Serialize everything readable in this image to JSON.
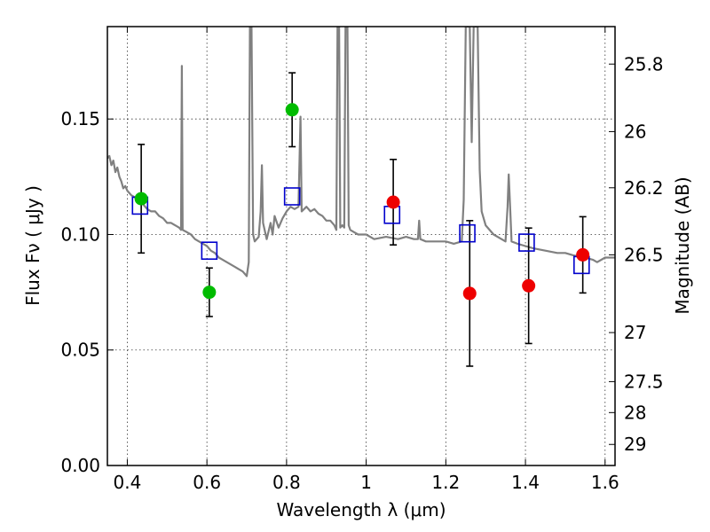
{
  "chart_data": {
    "type": "scatter",
    "xlabel": "Wavelength  λ (μm)",
    "ylabel": "Flux  Fν  ( μJy )",
    "y2label": "Magnitude (AB)",
    "xlim": [
      0.35,
      1.625
    ],
    "ylim": [
      0.0,
      0.19
    ],
    "x_ticks": [
      "0.4",
      "0.6",
      "0.8",
      "1",
      "1.2",
      "1.4",
      "1.6"
    ],
    "y_ticks": [
      "0.00",
      "0.05",
      "0.10",
      "0.15"
    ],
    "y2_ticks": [
      "25.8",
      "26",
      "26.2",
      "26.5",
      "27",
      "27.5",
      "28",
      "29"
    ],
    "grid": true,
    "colors": {
      "model": "#808080",
      "green": "#00bb00",
      "red": "#ee0000",
      "square": "#0000cc",
      "errorbar": "#000000"
    },
    "observed_green": [
      {
        "x": 0.435,
        "y": 0.1155,
        "err": 0.0235
      },
      {
        "x": 0.606,
        "y": 0.075,
        "err": 0.0105
      },
      {
        "x": 0.814,
        "y": 0.154,
        "err": 0.016
      }
    ],
    "observed_red": [
      {
        "x": 1.068,
        "y": 0.114,
        "err": 0.0185
      },
      {
        "x": 1.26,
        "y": 0.0745,
        "err": 0.0315
      },
      {
        "x": 1.408,
        "y": 0.0778,
        "err": 0.025
      },
      {
        "x": 1.544,
        "y": 0.0912,
        "err": 0.0165
      }
    ],
    "model_bands": [
      {
        "x": 0.432,
        "y": 0.1125
      },
      {
        "x": 0.606,
        "y": 0.093
      },
      {
        "x": 0.814,
        "y": 0.1165
      },
      {
        "x": 1.065,
        "y": 0.1085
      },
      {
        "x": 1.254,
        "y": 0.1005
      },
      {
        "x": 1.403,
        "y": 0.0965
      },
      {
        "x": 1.541,
        "y": 0.0868
      }
    ],
    "model_spectrum": [
      [
        0.35,
        0.133
      ],
      [
        0.355,
        0.134
      ],
      [
        0.36,
        0.13
      ],
      [
        0.365,
        0.132
      ],
      [
        0.37,
        0.127
      ],
      [
        0.375,
        0.129
      ],
      [
        0.38,
        0.125
      ],
      [
        0.385,
        0.123
      ],
      [
        0.39,
        0.12
      ],
      [
        0.395,
        0.121
      ],
      [
        0.4,
        0.119
      ],
      [
        0.41,
        0.117
      ],
      [
        0.42,
        0.116
      ],
      [
        0.43,
        0.114
      ],
      [
        0.44,
        0.113
      ],
      [
        0.45,
        0.111
      ],
      [
        0.46,
        0.11
      ],
      [
        0.47,
        0.11
      ],
      [
        0.48,
        0.108
      ],
      [
        0.49,
        0.107
      ],
      [
        0.5,
        0.105
      ],
      [
        0.51,
        0.105
      ],
      [
        0.52,
        0.104
      ],
      [
        0.53,
        0.103
      ],
      [
        0.535,
        0.102
      ],
      [
        0.537,
        0.173
      ],
      [
        0.539,
        0.102
      ],
      [
        0.55,
        0.101
      ],
      [
        0.56,
        0.1
      ],
      [
        0.57,
        0.098
      ],
      [
        0.58,
        0.097
      ],
      [
        0.59,
        0.096
      ],
      [
        0.6,
        0.095
      ],
      [
        0.61,
        0.093
      ],
      [
        0.62,
        0.092
      ],
      [
        0.63,
        0.09
      ],
      [
        0.64,
        0.089
      ],
      [
        0.65,
        0.088
      ],
      [
        0.66,
        0.087
      ],
      [
        0.67,
        0.086
      ],
      [
        0.68,
        0.085
      ],
      [
        0.69,
        0.084
      ],
      [
        0.7,
        0.082
      ],
      [
        0.705,
        0.088
      ],
      [
        0.708,
        0.19
      ],
      [
        0.712,
        0.19
      ],
      [
        0.716,
        0.1
      ],
      [
        0.72,
        0.097
      ],
      [
        0.73,
        0.099
      ],
      [
        0.735,
        0.11
      ],
      [
        0.738,
        0.13
      ],
      [
        0.741,
        0.105
      ],
      [
        0.75,
        0.098
      ],
      [
        0.76,
        0.105
      ],
      [
        0.765,
        0.1
      ],
      [
        0.77,
        0.108
      ],
      [
        0.78,
        0.103
      ],
      [
        0.79,
        0.107
      ],
      [
        0.8,
        0.11
      ],
      [
        0.81,
        0.112
      ],
      [
        0.82,
        0.111
      ],
      [
        0.83,
        0.112
      ],
      [
        0.835,
        0.151
      ],
      [
        0.838,
        0.11
      ],
      [
        0.85,
        0.112
      ],
      [
        0.86,
        0.11
      ],
      [
        0.87,
        0.111
      ],
      [
        0.88,
        0.109
      ],
      [
        0.89,
        0.108
      ],
      [
        0.9,
        0.106
      ],
      [
        0.91,
        0.106
      ],
      [
        0.92,
        0.104
      ],
      [
        0.925,
        0.102
      ],
      [
        0.928,
        0.19
      ],
      [
        0.932,
        0.19
      ],
      [
        0.935,
        0.103
      ],
      [
        0.94,
        0.104
      ],
      [
        0.945,
        0.103
      ],
      [
        0.948,
        0.19
      ],
      [
        0.953,
        0.19
      ],
      [
        0.956,
        0.104
      ],
      [
        0.96,
        0.102
      ],
      [
        0.97,
        0.101
      ],
      [
        0.98,
        0.1
      ],
      [
        1.0,
        0.1
      ],
      [
        1.02,
        0.098
      ],
      [
        1.05,
        0.099
      ],
      [
        1.08,
        0.098
      ],
      [
        1.1,
        0.099
      ],
      [
        1.12,
        0.098
      ],
      [
        1.13,
        0.098
      ],
      [
        1.133,
        0.106
      ],
      [
        1.136,
        0.098
      ],
      [
        1.15,
        0.097
      ],
      [
        1.18,
        0.097
      ],
      [
        1.2,
        0.097
      ],
      [
        1.22,
        0.096
      ],
      [
        1.24,
        0.097
      ],
      [
        1.245,
        0.115
      ],
      [
        1.25,
        0.19
      ],
      [
        1.26,
        0.19
      ],
      [
        1.265,
        0.14
      ],
      [
        1.27,
        0.19
      ],
      [
        1.28,
        0.19
      ],
      [
        1.285,
        0.128
      ],
      [
        1.29,
        0.11
      ],
      [
        1.3,
        0.104
      ],
      [
        1.32,
        0.1
      ],
      [
        1.34,
        0.098
      ],
      [
        1.35,
        0.097
      ],
      [
        1.355,
        0.112
      ],
      [
        1.358,
        0.126
      ],
      [
        1.362,
        0.11
      ],
      [
        1.365,
        0.097
      ],
      [
        1.38,
        0.096
      ],
      [
        1.4,
        0.095
      ],
      [
        1.42,
        0.094
      ],
      [
        1.45,
        0.093
      ],
      [
        1.48,
        0.092
      ],
      [
        1.5,
        0.092
      ],
      [
        1.52,
        0.091
      ],
      [
        1.55,
        0.09
      ],
      [
        1.57,
        0.089
      ],
      [
        1.58,
        0.088
      ],
      [
        1.6,
        0.09
      ],
      [
        1.625,
        0.09
      ]
    ]
  }
}
